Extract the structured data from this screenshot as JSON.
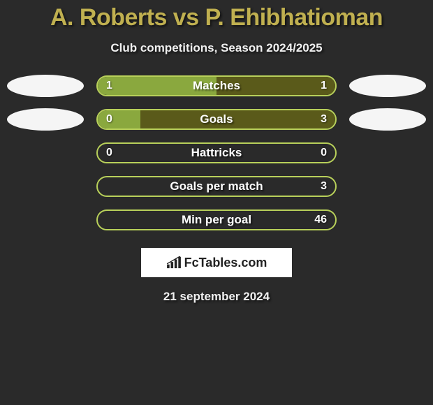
{
  "title": "A. Roberts vs P. Ehibhatioman",
  "subtitle": "Club competitions, Season 2024/2025",
  "colors": {
    "background": "#2a2a2a",
    "accent": "#c0b050",
    "text": "#f0f0f0",
    "ellipse": "#f5f5f5",
    "bar_green": "#8aa83e",
    "bar_olive": "#5a5a1a",
    "bar_border": "#b8d05a"
  },
  "rows": [
    {
      "label": "Matches",
      "left_value": "1",
      "right_value": "1",
      "left_fill_pct": 50,
      "right_fill_pct": 50,
      "left_color": "#8aa83e",
      "right_color": "#5a5a1a",
      "border_color": "#b8d05a",
      "show_left_ellipse": true,
      "show_right_ellipse": true
    },
    {
      "label": "Goals",
      "left_value": "0",
      "right_value": "3",
      "left_fill_pct": 18,
      "right_fill_pct": 82,
      "left_color": "#8aa83e",
      "right_color": "#5a5a1a",
      "border_color": "#b8d05a",
      "show_left_ellipse": true,
      "show_right_ellipse": true
    },
    {
      "label": "Hattricks",
      "left_value": "0",
      "right_value": "0",
      "left_fill_pct": 0,
      "right_fill_pct": 0,
      "left_color": "transparent",
      "right_color": "transparent",
      "border_color": "#b8d05a",
      "show_left_ellipse": false,
      "show_right_ellipse": false
    },
    {
      "label": "Goals per match",
      "left_value": "",
      "right_value": "3",
      "left_fill_pct": 0,
      "right_fill_pct": 0,
      "left_color": "transparent",
      "right_color": "transparent",
      "border_color": "#b8d05a",
      "show_left_ellipse": false,
      "show_right_ellipse": false
    },
    {
      "label": "Min per goal",
      "left_value": "",
      "right_value": "46",
      "left_fill_pct": 0,
      "right_fill_pct": 0,
      "left_color": "transparent",
      "right_color": "transparent",
      "border_color": "#b8d05a",
      "show_left_ellipse": false,
      "show_right_ellipse": false
    }
  ],
  "logo": {
    "text": "FcTables.com"
  },
  "date": "21 september 2024"
}
